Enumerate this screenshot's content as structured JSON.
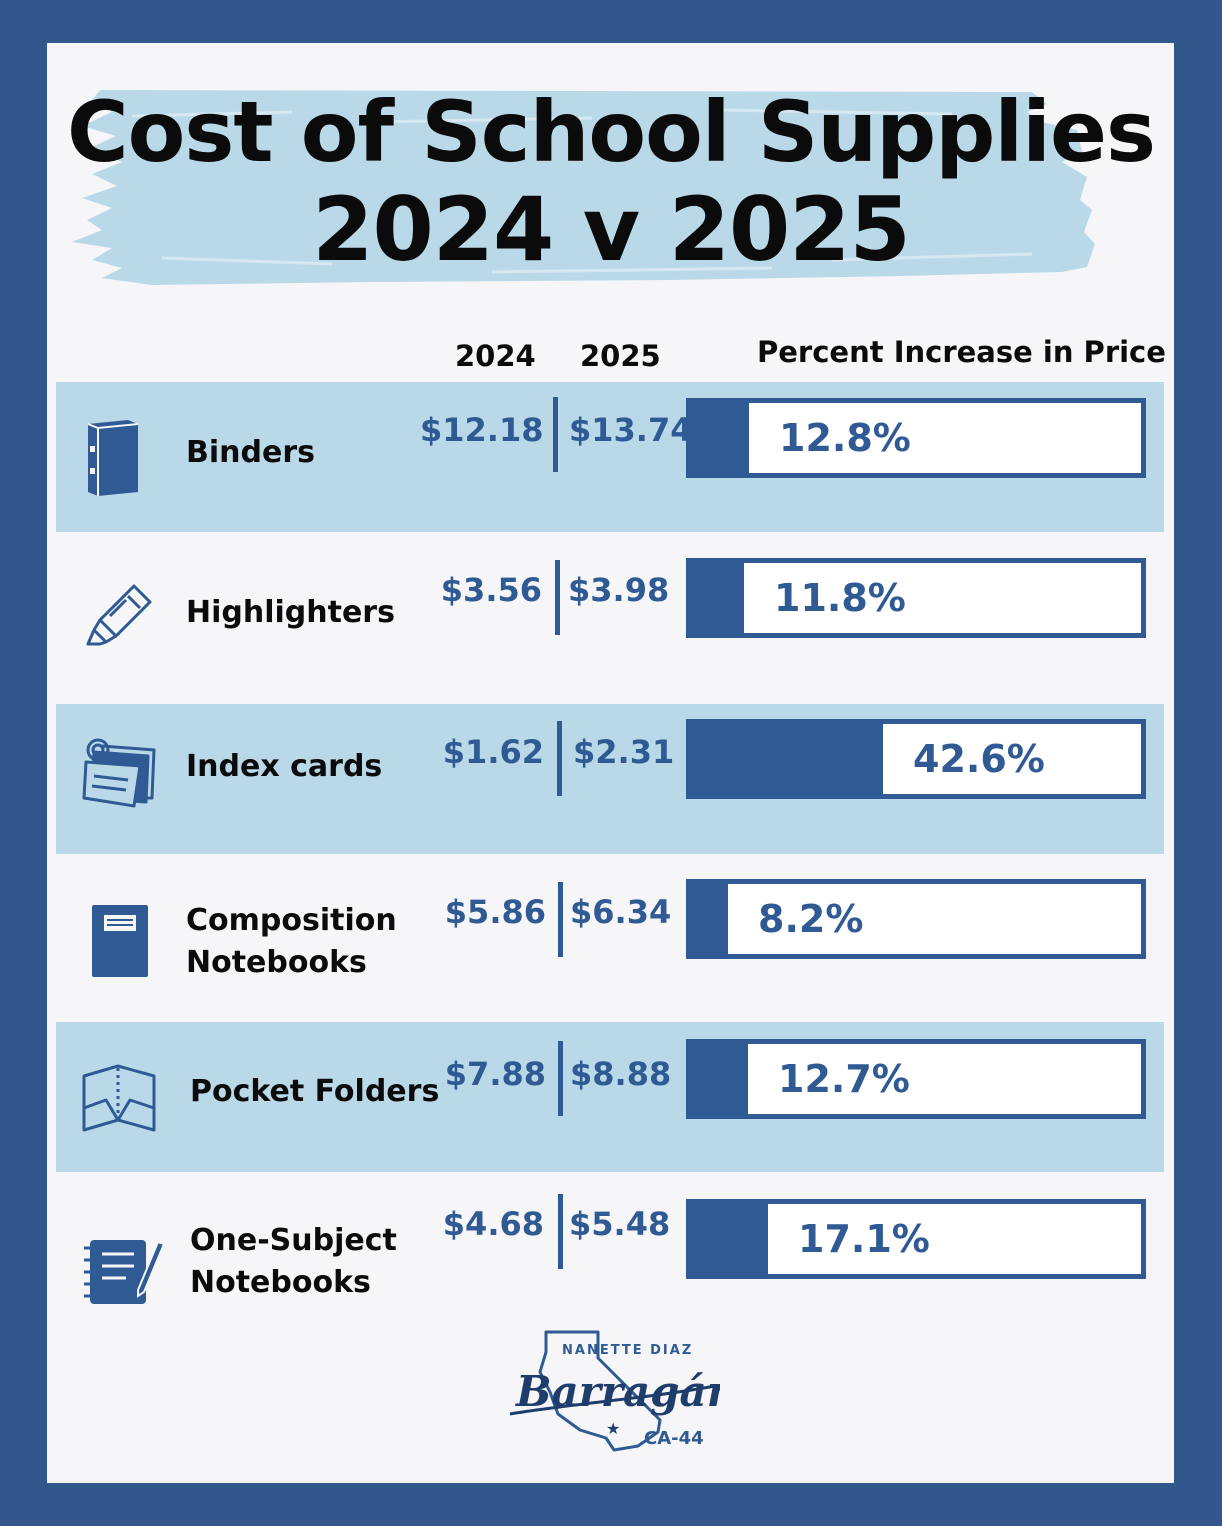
{
  "title": {
    "line1": "Cost of School Supplies",
    "line2": "2024 v 2025"
  },
  "headers": {
    "year1": "2024",
    "year2": "2025",
    "percent": "Percent Increase in Price"
  },
  "colors": {
    "frame": "#32578b",
    "accent": "#2f5a93",
    "row_shade": "#bad9e8",
    "card": "#f6f6f8"
  },
  "chart_data": {
    "type": "bar",
    "title": "Cost of School Supplies 2024 v 2025",
    "categories": [
      "Binders",
      "Highlighters",
      "Index cards",
      "Composition Notebooks",
      "Pocket Folders",
      "One-Subject Notebooks"
    ],
    "series": [
      {
        "name": "2024",
        "values": [
          12.18,
          3.56,
          1.62,
          5.86,
          7.88,
          4.68
        ]
      },
      {
        "name": "2025",
        "values": [
          13.74,
          3.98,
          2.31,
          6.34,
          8.88,
          5.48
        ]
      },
      {
        "name": "Percent Increase in Price",
        "values": [
          12.8,
          11.8,
          42.6,
          8.2,
          12.7,
          17.1
        ]
      }
    ],
    "ylabel": "Percent Increase in Price",
    "ylim": [
      0,
      100
    ]
  },
  "rows": [
    {
      "label": "Binders",
      "icon": "binder-icon",
      "price_2024": "$12.18",
      "price_2025": "$13.74",
      "percent_label": "12.8%",
      "percent": 12.8
    },
    {
      "label": "Highlighters",
      "icon": "highlighter-icon",
      "price_2024": "$3.56",
      "price_2025": "$3.98",
      "percent_label": "11.8%",
      "percent": 11.8
    },
    {
      "label": "Index cards",
      "icon": "index-cards-icon",
      "price_2024": "$1.62",
      "price_2025": "$2.31",
      "percent_label": "42.6%",
      "percent": 42.6
    },
    {
      "label": "Composition\nNotebooks",
      "icon": "composition-notebook-icon",
      "price_2024": "$5.86",
      "price_2025": "$6.34",
      "percent_label": "8.2%",
      "percent": 8.2
    },
    {
      "label": "Pocket Folders",
      "icon": "pocket-folder-icon",
      "price_2024": "$7.88",
      "price_2025": "$8.88",
      "percent_label": "12.7%",
      "percent": 12.7
    },
    {
      "label": "One-Subject\nNotebooks",
      "icon": "spiral-notebook-icon",
      "price_2024": "$4.68",
      "price_2025": "$5.48",
      "percent_label": "17.1%",
      "percent": 17.1
    }
  ],
  "logo": {
    "top": "NANETTE DIAZ",
    "name": "Barragán",
    "district": "CA-44"
  }
}
